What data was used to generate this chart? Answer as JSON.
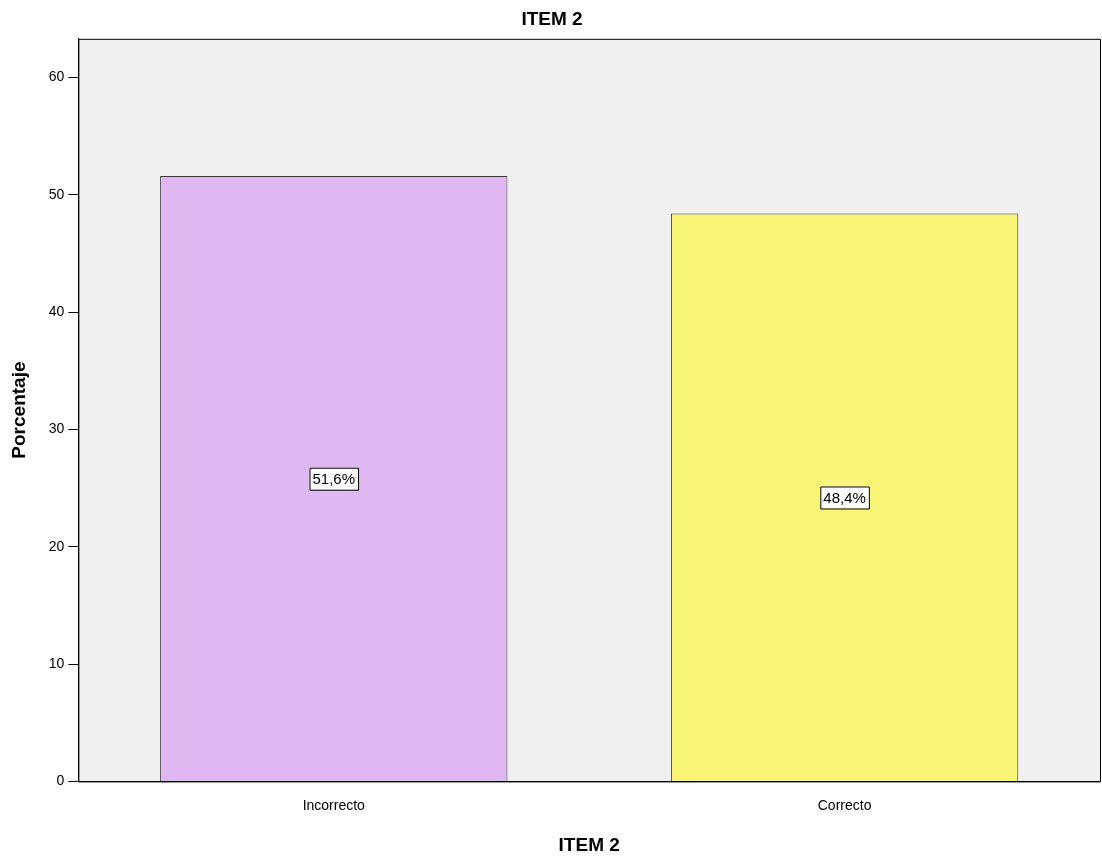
{
  "chart_data": {
    "type": "bar",
    "title": "ITEM 2",
    "xlabel": "ITEM 2",
    "ylabel": "Porcentaje",
    "categories": [
      "Incorrecto",
      "Correcto"
    ],
    "values": [
      51.6,
      48.4
    ],
    "colors": [
      "#dfb8f2",
      "#f8f577"
    ],
    "value_labels": [
      "51,6%",
      "48,4%"
    ],
    "ylim": [
      0,
      63.3
    ],
    "yticks": [
      0,
      10,
      20,
      30,
      40,
      50,
      60
    ],
    "grid": false,
    "legend": false
  }
}
